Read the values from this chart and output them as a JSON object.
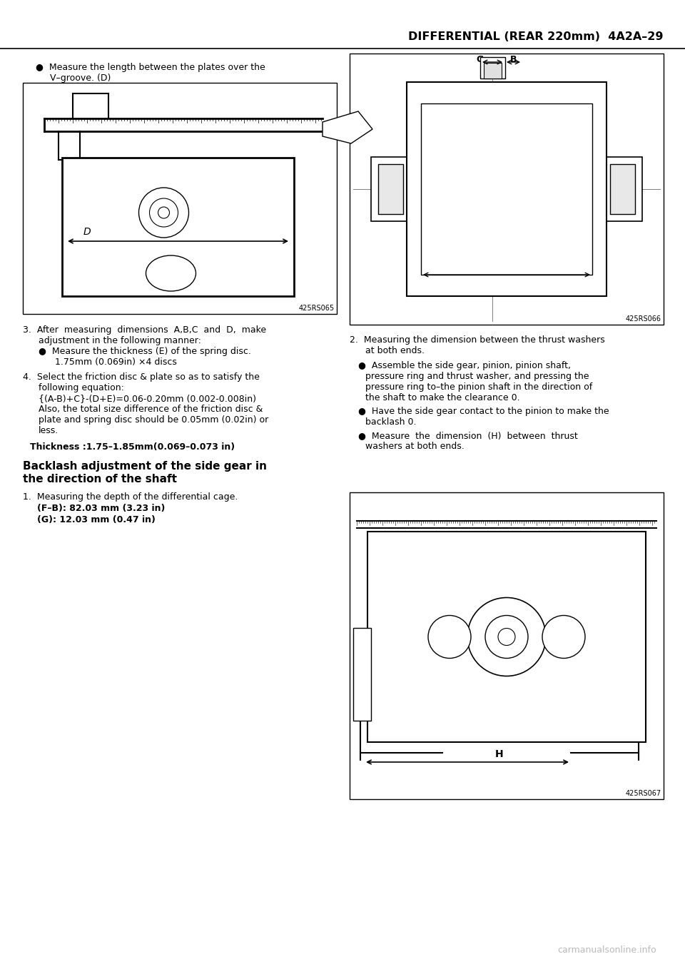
{
  "bg_color": "#ffffff",
  "watermark": "carmanualsonline.info",
  "header_text": "DIFFERENTIAL (REAR 220mm)",
  "header_page": "4A2A–29",
  "img1_caption": "425RS065",
  "img2_caption": "425RS066",
  "img3_caption": "425RS067",
  "text_thickness": "Thickness :1.75–1.85mm(0.069–0.073 in)",
  "section_title_1": "Backlash adjustment of the side gear in",
  "section_title_2": "the direction of the shaft"
}
